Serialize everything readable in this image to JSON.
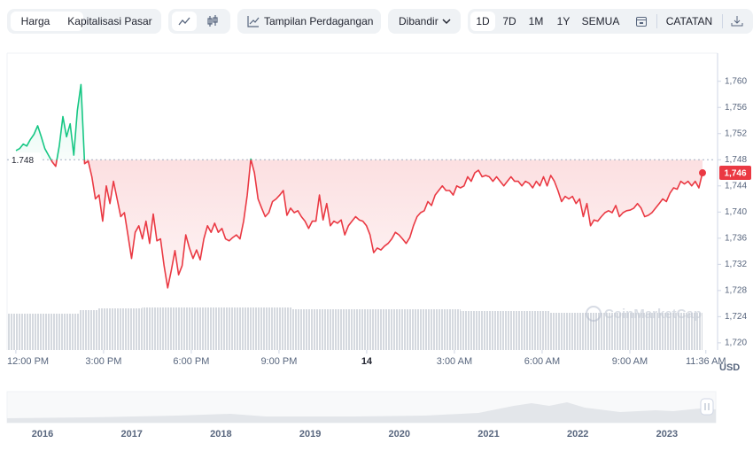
{
  "toolbar": {
    "views": [
      "Harga",
      "Kapitalisasi Pasar"
    ],
    "trading_view": "Tampilan Perdagangan",
    "compare": "Dibandir",
    "ranges": [
      "1D",
      "7D",
      "1M",
      "1Y",
      "SEMUA"
    ],
    "notes": "CATATAN"
  },
  "chart_data": {
    "type": "line",
    "values": [
      1749.4,
      1749.7,
      1750.4,
      1750.1,
      1751.1,
      1751.9,
      1753.2,
      1751.5,
      1749.7,
      1748.7,
      1747.7,
      1747.0,
      1750.1,
      1754.6,
      1751.5,
      1753.5,
      1748.7,
      1755.5,
      1759.5,
      1747.4,
      1747.8,
      1745.4,
      1742.0,
      1742.6,
      1738.6,
      1744.0,
      1741.3,
      1744.7,
      1742.0,
      1739.3,
      1739.9,
      1736.5,
      1732.9,
      1736.9,
      1737.9,
      1735.9,
      1738.6,
      1735.2,
      1739.7,
      1735.6,
      1735.9,
      1731.8,
      1728.4,
      1731.1,
      1734.1,
      1730.4,
      1731.8,
      1736.5,
      1734.5,
      1732.9,
      1734.2,
      1732.7,
      1735.9,
      1737.9,
      1736.9,
      1738.3,
      1736.9,
      1737.5,
      1735.9,
      1735.6,
      1736.1,
      1736.5,
      1735.9,
      1738.6,
      1742.6,
      1748.1,
      1746.0,
      1742.0,
      1740.6,
      1739.3,
      1739.9,
      1741.6,
      1742.0,
      1742.6,
      1743.3,
      1739.5,
      1740.6,
      1739.9,
      1740.2,
      1739.3,
      1738.6,
      1737.5,
      1738.6,
      1738.6,
      1742.6,
      1738.8,
      1741.3,
      1737.9,
      1738.6,
      1738.3,
      1738.8,
      1736.5,
      1737.9,
      1738.6,
      1739.3,
      1738.8,
      1738.6,
      1737.9,
      1736.5,
      1733.8,
      1734.5,
      1734.2,
      1734.8,
      1735.2,
      1735.9,
      1736.9,
      1736.5,
      1735.9,
      1735.2,
      1736.1,
      1737.9,
      1739.3,
      1739.9,
      1740.2,
      1741.6,
      1741.0,
      1742.6,
      1743.3,
      1744.0,
      1743.3,
      1743.3,
      1742.6,
      1744.0,
      1743.7,
      1744.0,
      1745.4,
      1744.7,
      1746.0,
      1746.4,
      1745.4,
      1745.6,
      1745.4,
      1744.7,
      1745.4,
      1744.7,
      1744.0,
      1744.7,
      1745.4,
      1744.7,
      1744.7,
      1744.0,
      1744.7,
      1744.4,
      1743.7,
      1744.7,
      1744.0,
      1745.4,
      1744.0,
      1745.6,
      1744.7,
      1743.3,
      1741.6,
      1742.4,
      1742.0,
      1742.4,
      1741.3,
      1742.0,
      1739.3,
      1741.3,
      1737.9,
      1738.8,
      1738.6,
      1739.3,
      1739.9,
      1740.2,
      1739.9,
      1741.0,
      1739.3,
      1739.9,
      1740.2,
      1740.3,
      1740.6,
      1741.3,
      1740.6,
      1739.3,
      1739.5,
      1739.9,
      1740.6,
      1741.3,
      1742.0,
      1741.6,
      1742.9,
      1743.7,
      1743.5,
      1744.7,
      1744.3,
      1744.7,
      1744.0,
      1744.7,
      1743.7,
      1746.0
    ],
    "last_label": "1,746",
    "baseline": {
      "value": 1748,
      "label": "1.748"
    },
    "colors": {
      "up": "#16c784",
      "down": "#ea3943"
    },
    "ylim": [
      1718.9,
      1764.3
    ],
    "yticks": [
      {
        "value": 1720,
        "label": "1,720"
      },
      {
        "value": 1724,
        "label": "1,724"
      },
      {
        "value": 1728,
        "label": "1,728"
      },
      {
        "value": 1732,
        "label": "1,732"
      },
      {
        "value": 1736,
        "label": "1,736"
      },
      {
        "value": 1740,
        "label": "1,740"
      },
      {
        "value": 1744,
        "label": "1,744"
      },
      {
        "value": 1748,
        "label": "1,748"
      },
      {
        "value": 1752,
        "label": "1,752"
      },
      {
        "value": 1756,
        "label": "1,756"
      },
      {
        "value": 1760,
        "label": "1,760"
      }
    ],
    "xlim": [
      -0.3,
      23.94
    ],
    "xticks": [
      {
        "value": 0,
        "label": "12:00 PM"
      },
      {
        "value": 3,
        "label": "3:00 PM"
      },
      {
        "value": 6,
        "label": "6:00 PM"
      },
      {
        "value": 9,
        "label": "9:00 PM"
      },
      {
        "value": 12,
        "label": "14"
      },
      {
        "value": 15,
        "label": "3:00 AM"
      },
      {
        "value": 18,
        "label": "6:00 AM"
      },
      {
        "value": 21,
        "label": "9:00 AM"
      },
      {
        "value": 23.6,
        "label": "11:36 AM"
      }
    ],
    "unit": "USD",
    "watermark": "CoinMarketCap",
    "navigator_years": [
      "2016",
      "2017",
      "2018",
      "2019",
      "2020",
      "2021",
      "2022",
      "2023"
    ]
  }
}
